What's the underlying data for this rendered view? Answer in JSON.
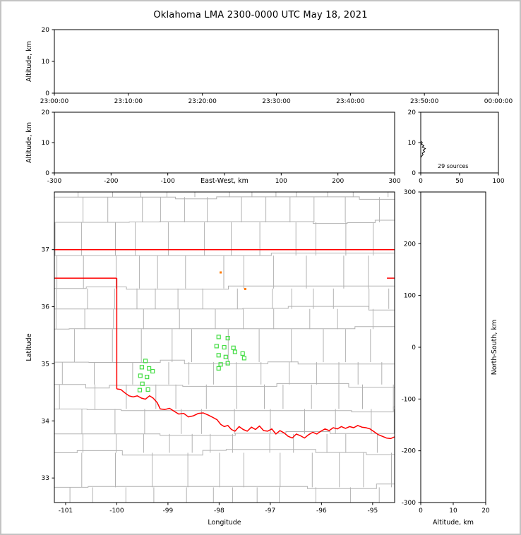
{
  "title": "Oklahoma LMA 2300-0000 UTC May 18, 2021",
  "colors": {
    "background": "#ffffff",
    "frame_border": "#c3c3c3",
    "axis": "#000000",
    "county_line": "#b2b2b2",
    "state_line": "#ff0000",
    "source_marker": "#44dd44",
    "old_source_marker": "#ff7b00",
    "histogram_line": "#000000"
  },
  "chart_data": [
    {
      "id": "time_height",
      "type": "scatter",
      "xlabel": "",
      "ylabel": "Altitude, km",
      "xlim": [
        0,
        3600
      ],
      "ylim": [
        0,
        20
      ],
      "xticks": [
        {
          "v": 0,
          "label": "23:00:00"
        },
        {
          "v": 600,
          "label": "23:10:00"
        },
        {
          "v": 1200,
          "label": "23:20:00"
        },
        {
          "v": 1800,
          "label": "23:30:00"
        },
        {
          "v": 2400,
          "label": "23:40:00"
        },
        {
          "v": 3000,
          "label": "23:50:00"
        },
        {
          "v": 3600,
          "label": "00:00:00"
        }
      ],
      "yticks": [
        {
          "v": 0,
          "label": "0"
        },
        {
          "v": 10,
          "label": "10"
        },
        {
          "v": 20,
          "label": "20"
        }
      ],
      "points": []
    },
    {
      "id": "ew_height",
      "type": "scatter",
      "xlabel": "East-West, km",
      "xlabel_inline": true,
      "ylabel": "Altitude, km",
      "xlim": [
        -300,
        300
      ],
      "ylim": [
        0,
        20
      ],
      "xticks": [
        {
          "v": -300,
          "label": "-300"
        },
        {
          "v": -200,
          "label": "-200"
        },
        {
          "v": -100,
          "label": "-100"
        },
        {
          "v": 0,
          "label": ""
        },
        {
          "v": 100,
          "label": "100"
        },
        {
          "v": 200,
          "label": "200"
        },
        {
          "v": 300,
          "label": "300"
        }
      ],
      "yticks": [
        {
          "v": 0,
          "label": "0"
        },
        {
          "v": 10,
          "label": "10"
        },
        {
          "v": 20,
          "label": "20"
        }
      ],
      "points": []
    },
    {
      "id": "altitude_histogram",
      "type": "line",
      "xlabel": "",
      "ylabel": "",
      "xlim": [
        0,
        100
      ],
      "ylim": [
        0,
        20
      ],
      "xticks": [
        {
          "v": 0,
          "label": "0"
        },
        {
          "v": 50,
          "label": "50"
        },
        {
          "v": 100,
          "label": "100"
        }
      ],
      "yticks": [
        {
          "v": 0,
          "label": "0"
        },
        {
          "v": 10,
          "label": "10"
        },
        {
          "v": 20,
          "label": "20"
        }
      ],
      "annotation": "29 sources",
      "histogram_alt_count": [
        [
          5.0,
          0
        ],
        [
          5.5,
          1
        ],
        [
          6.0,
          3
        ],
        [
          6.5,
          2
        ],
        [
          7.0,
          5
        ],
        [
          7.5,
          3
        ],
        [
          8.0,
          6
        ],
        [
          8.5,
          2
        ],
        [
          9.0,
          4
        ],
        [
          9.5,
          1
        ],
        [
          10.0,
          2
        ],
        [
          10.5,
          0
        ]
      ]
    },
    {
      "id": "plan_view_map",
      "type": "scatter",
      "xlabel": "Longitude",
      "ylabel": "Latitude",
      "xlim": [
        -101.22,
        -94.57
      ],
      "ylim": [
        32.57,
        38.01
      ],
      "xticks": [
        {
          "v": -101,
          "label": "-101"
        },
        {
          "v": -100,
          "label": "-100"
        },
        {
          "v": -99,
          "label": "-99"
        },
        {
          "v": -98,
          "label": "-98"
        },
        {
          "v": -97,
          "label": "-97"
        },
        {
          "v": -96,
          "label": "-96"
        },
        {
          "v": -95,
          "label": "-95"
        }
      ],
      "yticks": [
        {
          "v": 33,
          "label": "33"
        },
        {
          "v": 34,
          "label": "34"
        },
        {
          "v": 35,
          "label": "35"
        },
        {
          "v": 36,
          "label": "36"
        },
        {
          "v": 37,
          "label": "37"
        }
      ],
      "county_grid": {
        "seed": 9
      },
      "state_borders": [
        [
          [
            -101.22,
            37.0
          ],
          [
            -94.57,
            37.0
          ]
        ],
        [
          [
            -101.22,
            36.5
          ],
          [
            -100.0,
            36.5
          ]
        ],
        [
          [
            -100.0,
            36.5
          ],
          [
            -100.0,
            34.56
          ]
        ],
        [
          [
            -94.72,
            36.5
          ],
          [
            -94.57,
            36.5
          ]
        ],
        [
          [
            -100.0,
            34.56
          ],
          [
            -99.92,
            34.55
          ],
          [
            -99.84,
            34.49
          ],
          [
            -99.76,
            34.44
          ],
          [
            -99.68,
            34.42
          ],
          [
            -99.6,
            34.44
          ],
          [
            -99.52,
            34.4
          ],
          [
            -99.44,
            34.38
          ],
          [
            -99.36,
            34.44
          ],
          [
            -99.29,
            34.4
          ],
          [
            -99.21,
            34.32
          ],
          [
            -99.15,
            34.21
          ],
          [
            -99.06,
            34.2
          ],
          [
            -98.97,
            34.22
          ],
          [
            -98.88,
            34.17
          ],
          [
            -98.79,
            34.12
          ],
          [
            -98.69,
            34.13
          ],
          [
            -98.6,
            34.07
          ],
          [
            -98.5,
            34.09
          ],
          [
            -98.41,
            34.13
          ],
          [
            -98.31,
            34.14
          ],
          [
            -98.21,
            34.1
          ],
          [
            -98.12,
            34.06
          ],
          [
            -98.04,
            34.02
          ],
          [
            -97.97,
            33.94
          ],
          [
            -97.9,
            33.9
          ],
          [
            -97.83,
            33.92
          ],
          [
            -97.76,
            33.85
          ],
          [
            -97.69,
            33.82
          ],
          [
            -97.61,
            33.9
          ],
          [
            -97.53,
            33.85
          ],
          [
            -97.45,
            33.82
          ],
          [
            -97.37,
            33.89
          ],
          [
            -97.29,
            33.85
          ],
          [
            -97.21,
            33.91
          ],
          [
            -97.13,
            33.83
          ],
          [
            -97.05,
            33.82
          ],
          [
            -96.97,
            33.86
          ],
          [
            -96.89,
            33.77
          ],
          [
            -96.81,
            33.83
          ],
          [
            -96.73,
            33.79
          ],
          [
            -96.65,
            33.73
          ],
          [
            -96.57,
            33.7
          ],
          [
            -96.49,
            33.77
          ],
          [
            -96.41,
            33.74
          ],
          [
            -96.33,
            33.7
          ],
          [
            -96.25,
            33.76
          ],
          [
            -96.17,
            33.8
          ],
          [
            -96.09,
            33.77
          ],
          [
            -96.01,
            33.82
          ],
          [
            -95.93,
            33.86
          ],
          [
            -95.85,
            33.83
          ],
          [
            -95.77,
            33.88
          ],
          [
            -95.69,
            33.86
          ],
          [
            -95.61,
            33.9
          ],
          [
            -95.53,
            33.87
          ],
          [
            -95.45,
            33.9
          ],
          [
            -95.37,
            33.88
          ],
          [
            -95.29,
            33.92
          ],
          [
            -95.21,
            33.89
          ],
          [
            -95.13,
            33.88
          ],
          [
            -95.05,
            33.86
          ],
          [
            -94.97,
            33.81
          ],
          [
            -94.89,
            33.76
          ],
          [
            -94.81,
            33.73
          ],
          [
            -94.73,
            33.7
          ],
          [
            -94.65,
            33.69
          ],
          [
            -94.57,
            33.72
          ]
        ]
      ],
      "sources": [
        [
          -98.01,
          35.47
        ],
        [
          -97.83,
          35.45
        ],
        [
          -98.05,
          35.31
        ],
        [
          -97.9,
          35.29
        ],
        [
          -97.72,
          35.28
        ],
        [
          -97.69,
          35.21
        ],
        [
          -97.54,
          35.18
        ],
        [
          -98.01,
          35.15
        ],
        [
          -97.87,
          35.12
        ],
        [
          -97.51,
          35.1
        ],
        [
          -97.83,
          35.01
        ],
        [
          -97.97,
          34.99
        ],
        [
          -98.01,
          34.92
        ],
        [
          -99.44,
          35.05
        ],
        [
          -99.51,
          34.94
        ],
        [
          -99.37,
          34.92
        ],
        [
          -99.54,
          34.79
        ],
        [
          -99.41,
          34.77
        ],
        [
          -99.3,
          34.87
        ],
        [
          -99.5,
          34.65
        ],
        [
          -99.39,
          34.55
        ],
        [
          -99.55,
          34.54
        ]
      ],
      "old_sources": [
        [
          -97.97,
          36.6
        ],
        [
          -97.49,
          36.31
        ]
      ]
    },
    {
      "id": "ns_height",
      "type": "scatter",
      "xlabel": "Altitude, km",
      "ylabel": "North-South, km",
      "ylabel_side": "right",
      "xlim": [
        0,
        20
      ],
      "ylim": [
        -300,
        300
      ],
      "xticks": [
        {
          "v": 0,
          "label": "0"
        },
        {
          "v": 10,
          "label": "10"
        },
        {
          "v": 20,
          "label": "20"
        }
      ],
      "yticks": [
        {
          "v": 300,
          "label": "300"
        },
        {
          "v": 200,
          "label": "200"
        },
        {
          "v": 100,
          "label": "100"
        },
        {
          "v": 0,
          "label": "0"
        },
        {
          "v": -100,
          "label": "-100"
        },
        {
          "v": -200,
          "label": "-200"
        },
        {
          "v": -300,
          "label": "-300"
        }
      ],
      "points": []
    }
  ]
}
